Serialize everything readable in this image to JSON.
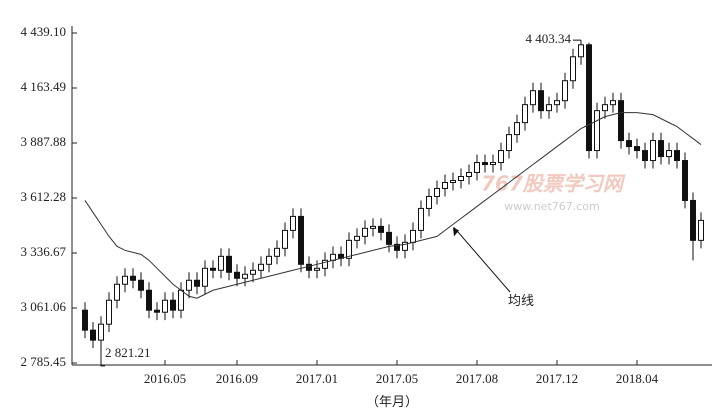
{
  "chart_data": {
    "type": "candlestick",
    "x_label": "（年月）",
    "categories": [
      null,
      null,
      null,
      null,
      null,
      null,
      null,
      null,
      null,
      null,
      "2016.05",
      null,
      null,
      null,
      null,
      null,
      null,
      null,
      null,
      "2016.09",
      null,
      null,
      null,
      null,
      null,
      null,
      null,
      null,
      null,
      "2017.01",
      null,
      null,
      null,
      null,
      null,
      null,
      null,
      null,
      null,
      "2017.05",
      null,
      null,
      null,
      null,
      null,
      null,
      null,
      null,
      null,
      "2017.08",
      null,
      null,
      null,
      null,
      null,
      null,
      null,
      null,
      null,
      "2017.12",
      null,
      null,
      null,
      null,
      null,
      null,
      null,
      null,
      null,
      "2018.04",
      null,
      null,
      null,
      null,
      null,
      null,
      null,
      null
    ],
    "open": [
      3050,
      2950,
      2900,
      2980,
      3100,
      3180,
      3220,
      3200,
      3150,
      3050,
      3040,
      3100,
      3050,
      3150,
      3200,
      3170,
      3260,
      3250,
      3320,
      3240,
      3210,
      3230,
      3250,
      3280,
      3320,
      3360,
      3450,
      3520,
      3280,
      3250,
      3260,
      3300,
      3330,
      3310,
      3400,
      3420,
      3460,
      3470,
      3440,
      3380,
      3350,
      3390,
      3450,
      3560,
      3620,
      3660,
      3690,
      3700,
      3720,
      3740,
      3790,
      3780,
      3790,
      3850,
      3930,
      3990,
      4080,
      4150,
      4050,
      4080,
      4100,
      4200,
      4320,
      4380,
      3850,
      4050,
      4080,
      4100,
      3900,
      3870,
      3850,
      3800,
      3900,
      3820,
      3850,
      3800,
      3600,
      3400
    ],
    "high": [
      3090,
      2990,
      3020,
      3140,
      3220,
      3260,
      3260,
      3240,
      3190,
      3090,
      3140,
      3140,
      3190,
      3240,
      3240,
      3300,
      3300,
      3360,
      3360,
      3280,
      3270,
      3290,
      3320,
      3360,
      3400,
      3490,
      3560,
      3560,
      3320,
      3300,
      3340,
      3370,
      3370,
      3440,
      3460,
      3500,
      3510,
      3510,
      3480,
      3420,
      3430,
      3490,
      3600,
      3660,
      3700,
      3730,
      3740,
      3760,
      3780,
      3830,
      3830,
      3830,
      3890,
      3970,
      4030,
      4120,
      4190,
      4190,
      4120,
      4140,
      4240,
      4360,
      4403.34,
      4390,
      4090,
      4120,
      4140,
      4140,
      3940,
      3910,
      3890,
      3940,
      3940,
      3890,
      3890,
      3840,
      3640,
      3540
    ],
    "low": [
      2910,
      2860,
      2821.21,
      2940,
      3060,
      3140,
      3160,
      3110,
      3010,
      3000,
      3000,
      3010,
      3010,
      3110,
      3130,
      3130,
      3210,
      3210,
      3200,
      3170,
      3170,
      3190,
      3210,
      3240,
      3280,
      3320,
      3410,
      3240,
      3210,
      3210,
      3220,
      3260,
      3270,
      3270,
      3360,
      3380,
      3420,
      3400,
      3340,
      3310,
      3310,
      3350,
      3410,
      3520,
      3580,
      3620,
      3650,
      3660,
      3680,
      3700,
      3740,
      3740,
      3750,
      3810,
      3890,
      3950,
      4040,
      4010,
      4010,
      4040,
      4060,
      4160,
      4280,
      3810,
      3810,
      4010,
      4040,
      3860,
      3830,
      3810,
      3760,
      3760,
      3780,
      3780,
      3760,
      3560,
      3300,
      3360
    ],
    "close": [
      2950,
      2900,
      2980,
      3100,
      3180,
      3220,
      3200,
      3150,
      3050,
      3040,
      3100,
      3050,
      3150,
      3200,
      3170,
      3260,
      3250,
      3320,
      3240,
      3210,
      3230,
      3250,
      3280,
      3320,
      3360,
      3450,
      3520,
      3280,
      3250,
      3260,
      3300,
      3330,
      3310,
      3400,
      3420,
      3460,
      3470,
      3440,
      3380,
      3350,
      3390,
      3450,
      3560,
      3620,
      3660,
      3690,
      3700,
      3720,
      3740,
      3790,
      3780,
      3790,
      3850,
      3930,
      3990,
      4080,
      4150,
      4050,
      4080,
      4100,
      4200,
      4320,
      4380,
      3850,
      4050,
      4080,
      4100,
      3900,
      3870,
      3850,
      3800,
      3900,
      3820,
      3850,
      3800,
      3600,
      3400,
      3500
    ],
    "ma": {
      "values": [
        3600,
        3540,
        3480,
        3420,
        3370,
        3350,
        3340,
        3330,
        3300,
        3260,
        3220,
        3180,
        3150,
        3120,
        3110,
        3130,
        3150,
        3160,
        3170,
        3180,
        3190,
        3200,
        3210,
        3220,
        3230,
        3240,
        3250,
        3260,
        3270,
        3280,
        3290,
        3300,
        3310,
        3320,
        3330,
        3340,
        3350,
        3360,
        3370,
        3375,
        3380,
        3390,
        3400,
        3410,
        3420,
        3450,
        3480,
        3510,
        3540,
        3570,
        3600,
        3630,
        3660,
        3690,
        3720,
        3750,
        3780,
        3810,
        3840,
        3870,
        3900,
        3930,
        3960,
        3980,
        4000,
        4020,
        4030,
        4040,
        4040,
        4040,
        4035,
        4030,
        4010,
        3990,
        3970,
        3940,
        3910,
        3880
      ]
    },
    "ylim": [
      2785.45,
      4439.1
    ],
    "yticks": [
      {
        "value": 2785.45,
        "label": "2 785.45"
      },
      {
        "value": 3061.06,
        "label": "3 061.06"
      },
      {
        "value": 3336.67,
        "label": "3 336.67"
      },
      {
        "value": 3612.28,
        "label": "3 612.28"
      },
      {
        "value": 3887.88,
        "label": "3 887.88"
      },
      {
        "value": 4163.49,
        "label": "4 163.49"
      },
      {
        "value": 4439.1,
        "label": "4 439.10"
      }
    ],
    "annotations": {
      "high": {
        "value": 4403.34,
        "label": "4 403.34"
      },
      "low": {
        "value": 2821.21,
        "label": "2 821.21"
      },
      "ma": "均线"
    },
    "watermark": [
      "767股票学习网",
      "www.net767.com"
    ]
  }
}
